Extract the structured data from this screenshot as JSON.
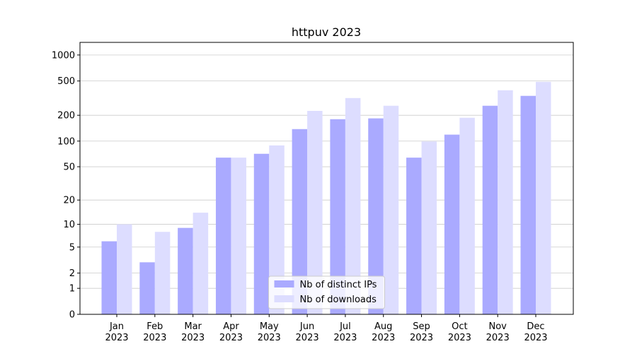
{
  "chart_data": {
    "type": "bar",
    "title": "httpuv 2023",
    "categories": [
      "Jan\n2023",
      "Feb\n2023",
      "Mar\n2023",
      "Apr\n2023",
      "May\n2023",
      "Jun\n2023",
      "Jul\n2023",
      "Aug\n2023",
      "Sep\n2023",
      "Oct\n2023",
      "Nov\n2023",
      "Dec\n2023"
    ],
    "series": [
      {
        "name": "Nb of distinct IPs",
        "color": "#aaaaff",
        "values": [
          6,
          3,
          9,
          64,
          71,
          138,
          180,
          184,
          64,
          119,
          258,
          336
        ]
      },
      {
        "name": "Nb of downloads",
        "color": "#ddddff",
        "values": [
          10,
          8,
          14,
          64,
          89,
          225,
          317,
          258,
          99,
          187,
          390,
          489
        ]
      }
    ],
    "yscale": "symlog",
    "ylim": [
      0,
      1400
    ],
    "yticks": [
      0,
      1,
      2,
      5,
      10,
      20,
      50,
      100,
      200,
      500,
      1000
    ],
    "grid": true,
    "legend": "lower center"
  }
}
